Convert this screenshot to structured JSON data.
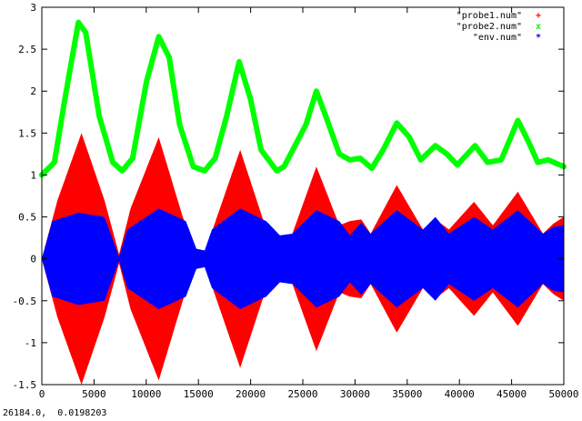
{
  "status_readout": "26184.0,  0.0198203",
  "chart_data": {
    "type": "scatter",
    "title": "",
    "xlabel": "",
    "ylabel": "",
    "xlim": [
      0,
      50000
    ],
    "ylim": [
      -1.5,
      3
    ],
    "grid": false,
    "legend_position": "top-right",
    "x_ticks": [
      0,
      5000,
      10000,
      15000,
      20000,
      25000,
      30000,
      35000,
      40000,
      45000,
      50000
    ],
    "y_ticks": [
      -1.5,
      -1,
      -0.5,
      0,
      0.5,
      1,
      1.5,
      2,
      2.5,
      3
    ],
    "series": [
      {
        "name": "\"probe1.num\"",
        "marker": "+",
        "color": "#ff0000",
        "style": "dense-oscillation",
        "envelope_points": [
          [
            0,
            0.0
          ],
          [
            1500,
            0.7
          ],
          [
            3800,
            1.5
          ],
          [
            6000,
            0.7
          ],
          [
            7400,
            0.05
          ],
          [
            8500,
            0.6
          ],
          [
            11200,
            1.45
          ],
          [
            13500,
            0.5
          ],
          [
            14800,
            0.08
          ],
          [
            15600,
            0.05
          ],
          [
            16500,
            0.4
          ],
          [
            19000,
            1.3
          ],
          [
            21500,
            0.35
          ],
          [
            22800,
            0.15
          ],
          [
            24000,
            0.3
          ],
          [
            26300,
            1.1
          ],
          [
            28500,
            0.4
          ],
          [
            29500,
            0.45
          ],
          [
            30600,
            0.47
          ],
          [
            31500,
            0.3
          ],
          [
            34000,
            0.88
          ],
          [
            36500,
            0.35
          ],
          [
            37700,
            0.47
          ],
          [
            39000,
            0.35
          ],
          [
            41400,
            0.68
          ],
          [
            43200,
            0.4
          ],
          [
            45600,
            0.8
          ],
          [
            48000,
            0.3
          ],
          [
            49000,
            0.42
          ],
          [
            50000,
            0.5
          ]
        ]
      },
      {
        "name": "\"probe2.num\"",
        "marker": "x",
        "color": "#00ff00",
        "style": "thick-line",
        "points": [
          [
            0,
            1.0
          ],
          [
            1200,
            1.15
          ],
          [
            2200,
            1.9
          ],
          [
            3500,
            2.82
          ],
          [
            4200,
            2.7
          ],
          [
            5500,
            1.7
          ],
          [
            6800,
            1.15
          ],
          [
            7700,
            1.05
          ],
          [
            8700,
            1.2
          ],
          [
            10000,
            2.1
          ],
          [
            11200,
            2.65
          ],
          [
            12200,
            2.4
          ],
          [
            13200,
            1.6
          ],
          [
            14500,
            1.1
          ],
          [
            15600,
            1.05
          ],
          [
            16600,
            1.2
          ],
          [
            17700,
            1.7
          ],
          [
            18900,
            2.35
          ],
          [
            20000,
            1.9
          ],
          [
            21000,
            1.3
          ],
          [
            22500,
            1.05
          ],
          [
            23200,
            1.1
          ],
          [
            25300,
            1.6
          ],
          [
            26300,
            2.0
          ],
          [
            27200,
            1.7
          ],
          [
            28500,
            1.25
          ],
          [
            29500,
            1.18
          ],
          [
            30500,
            1.2
          ],
          [
            31600,
            1.08
          ],
          [
            32700,
            1.3
          ],
          [
            34000,
            1.62
          ],
          [
            35200,
            1.45
          ],
          [
            36300,
            1.18
          ],
          [
            37700,
            1.35
          ],
          [
            38800,
            1.25
          ],
          [
            39800,
            1.12
          ],
          [
            41500,
            1.35
          ],
          [
            42700,
            1.15
          ],
          [
            44000,
            1.18
          ],
          [
            45600,
            1.65
          ],
          [
            46600,
            1.4
          ],
          [
            47500,
            1.15
          ],
          [
            48500,
            1.18
          ],
          [
            50000,
            1.1
          ]
        ]
      },
      {
        "name": "\"env.num\"",
        "marker": "*",
        "color": "#0000ff",
        "style": "dense-oscillation",
        "envelope_points": [
          [
            0,
            0.0
          ],
          [
            1000,
            0.45
          ],
          [
            3500,
            0.55
          ],
          [
            6000,
            0.5
          ],
          [
            7400,
            0.02
          ],
          [
            8200,
            0.35
          ],
          [
            11200,
            0.6
          ],
          [
            13800,
            0.45
          ],
          [
            14800,
            0.12
          ],
          [
            15600,
            0.1
          ],
          [
            16300,
            0.35
          ],
          [
            19000,
            0.6
          ],
          [
            21500,
            0.45
          ],
          [
            22800,
            0.28
          ],
          [
            24000,
            0.3
          ],
          [
            26300,
            0.58
          ],
          [
            28500,
            0.45
          ],
          [
            29500,
            0.28
          ],
          [
            30600,
            0.43
          ],
          [
            31500,
            0.3
          ],
          [
            34000,
            0.58
          ],
          [
            36500,
            0.35
          ],
          [
            37700,
            0.5
          ],
          [
            39000,
            0.3
          ],
          [
            41400,
            0.5
          ],
          [
            43200,
            0.35
          ],
          [
            45600,
            0.58
          ],
          [
            48000,
            0.3
          ],
          [
            49000,
            0.38
          ],
          [
            50000,
            0.4
          ]
        ]
      }
    ]
  }
}
